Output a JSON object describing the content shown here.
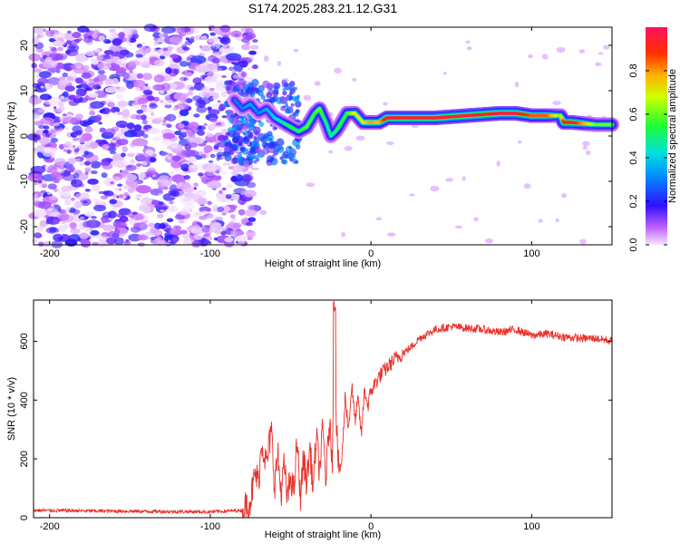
{
  "chart_data": [
    {
      "type": "heatmap",
      "title": "S174.2025.283.21.12.G31",
      "xlabel": "Height of straight line (km)",
      "ylabel": "Frequency (Hz)",
      "xlim": [
        -210,
        150
      ],
      "ylim": [
        -24,
        24
      ],
      "xticks": [
        -200,
        -100,
        0,
        100
      ],
      "yticks": [
        -20,
        -10,
        0,
        10,
        20
      ],
      "ridge": {
        "x": [
          -85,
          -80,
          -75,
          -70,
          -65,
          -60,
          -55,
          -50,
          -45,
          -40,
          -35,
          -32,
          -28,
          -25,
          -22,
          -20,
          -15,
          -10,
          -5,
          0,
          5,
          10,
          20,
          40,
          60,
          80,
          90,
          100,
          110,
          118,
          120,
          125,
          140,
          150
        ],
        "freq": [
          8,
          6,
          7,
          5,
          6,
          4,
          3,
          2,
          1,
          2,
          5,
          6,
          3,
          0,
          1,
          2,
          5,
          5,
          3,
          3,
          3,
          4,
          4,
          4,
          4.5,
          5,
          5,
          4.5,
          4.5,
          4.5,
          3,
          3,
          2.5,
          2.5
        ],
        "amplitude": [
          0.3,
          0.3,
          0.35,
          0.3,
          0.35,
          0.4,
          0.45,
          0.55,
          0.5,
          0.6,
          0.55,
          0.6,
          0.5,
          0.45,
          0.5,
          0.55,
          0.55,
          0.7,
          0.7,
          0.8,
          0.75,
          0.95,
          0.95,
          0.95,
          0.95,
          0.95,
          0.95,
          0.85,
          0.85,
          0.6,
          0.9,
          0.95,
          0.6,
          0.6
        ]
      },
      "noise_region_km": [
        -210,
        -80
      ],
      "colorbar": {
        "label": "Normalized spectral amplitude",
        "range": [
          0,
          1
        ],
        "ticks": [
          0.0,
          0.2,
          0.4,
          0.6,
          0.8
        ],
        "tick_labels": [
          "0.0",
          "0.2",
          "0.4",
          "0.6",
          "0.8"
        ]
      }
    },
    {
      "type": "line",
      "xlabel": "Height of straight line (km)",
      "ylabel": "SNR (10 * v/v)",
      "xlim": [
        -210,
        150
      ],
      "ylim": [
        0,
        740
      ],
      "xticks": [
        -200,
        -100,
        0,
        100
      ],
      "yticks": [
        0,
        200,
        400,
        600
      ],
      "series": [
        {
          "name": "SNR",
          "color": "#e8312a",
          "x": [
            -210,
            -150,
            -100,
            -80,
            -75,
            -72,
            -70,
            -68,
            -65,
            -62,
            -60,
            -58,
            -56,
            -54,
            -52,
            -50,
            -48,
            -46,
            -44,
            -42,
            -40,
            -38,
            -36,
            -34,
            -32,
            -30,
            -28,
            -26,
            -24,
            -23,
            -22,
            -20,
            -18,
            -16,
            -14,
            -12,
            -10,
            -8,
            -6,
            -4,
            -2,
            0,
            5,
            10,
            15,
            20,
            25,
            30,
            40,
            50,
            60,
            70,
            80,
            90,
            100,
            110,
            120,
            130,
            140,
            150
          ],
          "y": [
            25,
            22,
            20,
            25,
            60,
            150,
            120,
            260,
            180,
            300,
            110,
            220,
            80,
            180,
            60,
            140,
            90,
            260,
            70,
            200,
            120,
            240,
            100,
            280,
            160,
            300,
            130,
            320,
            200,
            720,
            380,
            150,
            200,
            420,
            300,
            450,
            330,
            400,
            280,
            440,
            380,
            430,
            480,
            510,
            540,
            560,
            580,
            610,
            640,
            650,
            645,
            640,
            630,
            640,
            620,
            625,
            615,
            610,
            610,
            600
          ]
        }
      ]
    }
  ]
}
